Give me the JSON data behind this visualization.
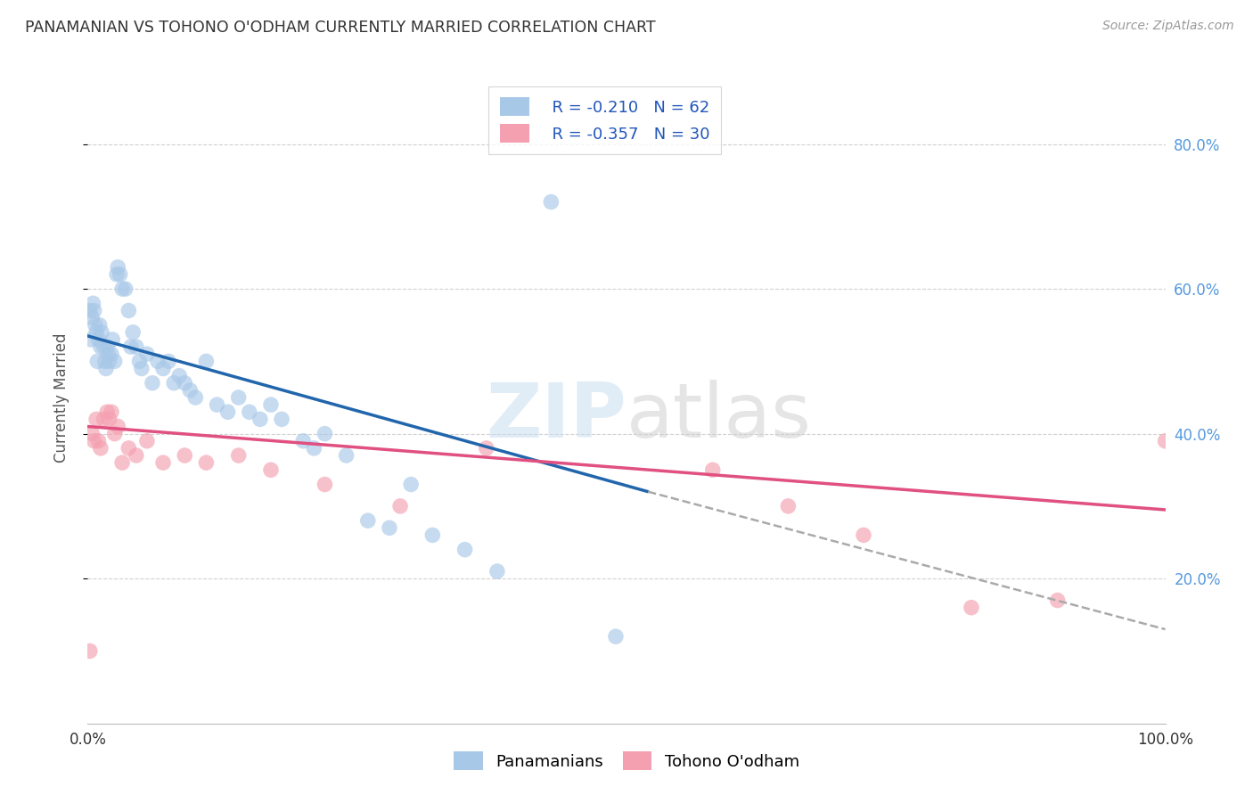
{
  "title": "PANAMANIAN VS TOHONO O'ODHAM CURRENTLY MARRIED CORRELATION CHART",
  "source": "Source: ZipAtlas.com",
  "ylabel": "Currently Married",
  "legend_blue_r": "R = -0.210",
  "legend_blue_n": "N = 62",
  "legend_pink_r": "R = -0.357",
  "legend_pink_n": "N = 30",
  "legend_label_blue": "Panamanians",
  "legend_label_pink": "Tohono O'odham",
  "blue_color": "#a8c8e8",
  "pink_color": "#f4a0b0",
  "blue_line_color": "#2166ac",
  "pink_line_color": "#e05080",
  "dashed_line_color": "#aaaaaa",
  "title_color": "#333333",
  "right_tick_color": "#5599dd",
  "grid_color": "#cccccc",
  "blue_scatter_x": [
    0.002,
    0.003,
    0.004,
    0.005,
    0.006,
    0.007,
    0.008,
    0.009,
    0.01,
    0.011,
    0.012,
    0.013,
    0.015,
    0.016,
    0.017,
    0.018,
    0.019,
    0.02,
    0.022,
    0.023,
    0.025,
    0.027,
    0.028,
    0.03,
    0.032,
    0.035,
    0.038,
    0.04,
    0.042,
    0.045,
    0.048,
    0.05,
    0.055,
    0.06,
    0.065,
    0.07,
    0.075,
    0.08,
    0.085,
    0.09,
    0.095,
    0.1,
    0.11,
    0.12,
    0.13,
    0.14,
    0.15,
    0.16,
    0.17,
    0.18,
    0.2,
    0.21,
    0.22,
    0.24,
    0.26,
    0.28,
    0.3,
    0.32,
    0.35,
    0.38,
    0.43,
    0.49
  ],
  "blue_scatter_y": [
    0.57,
    0.53,
    0.56,
    0.58,
    0.57,
    0.55,
    0.54,
    0.5,
    0.53,
    0.55,
    0.52,
    0.54,
    0.52,
    0.5,
    0.49,
    0.52,
    0.51,
    0.5,
    0.51,
    0.53,
    0.5,
    0.62,
    0.63,
    0.62,
    0.6,
    0.6,
    0.57,
    0.52,
    0.54,
    0.52,
    0.5,
    0.49,
    0.51,
    0.47,
    0.5,
    0.49,
    0.5,
    0.47,
    0.48,
    0.47,
    0.46,
    0.45,
    0.5,
    0.44,
    0.43,
    0.45,
    0.43,
    0.42,
    0.44,
    0.42,
    0.39,
    0.38,
    0.4,
    0.37,
    0.28,
    0.27,
    0.33,
    0.26,
    0.24,
    0.21,
    0.72,
    0.12
  ],
  "pink_scatter_x": [
    0.002,
    0.004,
    0.006,
    0.008,
    0.01,
    0.012,
    0.015,
    0.018,
    0.02,
    0.022,
    0.025,
    0.028,
    0.032,
    0.038,
    0.045,
    0.055,
    0.07,
    0.09,
    0.11,
    0.14,
    0.17,
    0.22,
    0.29,
    0.37,
    0.58,
    0.65,
    0.72,
    0.82,
    0.9,
    1.0
  ],
  "pink_scatter_y": [
    0.1,
    0.4,
    0.39,
    0.42,
    0.39,
    0.38,
    0.42,
    0.43,
    0.42,
    0.43,
    0.4,
    0.41,
    0.36,
    0.38,
    0.37,
    0.39,
    0.36,
    0.37,
    0.36,
    0.37,
    0.35,
    0.33,
    0.3,
    0.38,
    0.35,
    0.3,
    0.26,
    0.16,
    0.17,
    0.39
  ],
  "blue_line_x": [
    0.0,
    0.52
  ],
  "blue_line_y": [
    0.535,
    0.32
  ],
  "pink_line_x": [
    0.0,
    1.0
  ],
  "pink_line_y": [
    0.41,
    0.295
  ],
  "dashed_line_x": [
    0.52,
    1.0
  ],
  "dashed_line_y": [
    0.32,
    0.13
  ],
  "xlim": [
    0.0,
    1.0
  ],
  "ylim": [
    0.0,
    0.9
  ],
  "yticks": [
    0.2,
    0.4,
    0.6,
    0.8
  ],
  "ytick_labels": [
    "20.0%",
    "40.0%",
    "60.0%",
    "80.0%"
  ],
  "xtick_positions": [
    0.0,
    1.0
  ],
  "xtick_labels": [
    "0.0%",
    "100.0%"
  ]
}
